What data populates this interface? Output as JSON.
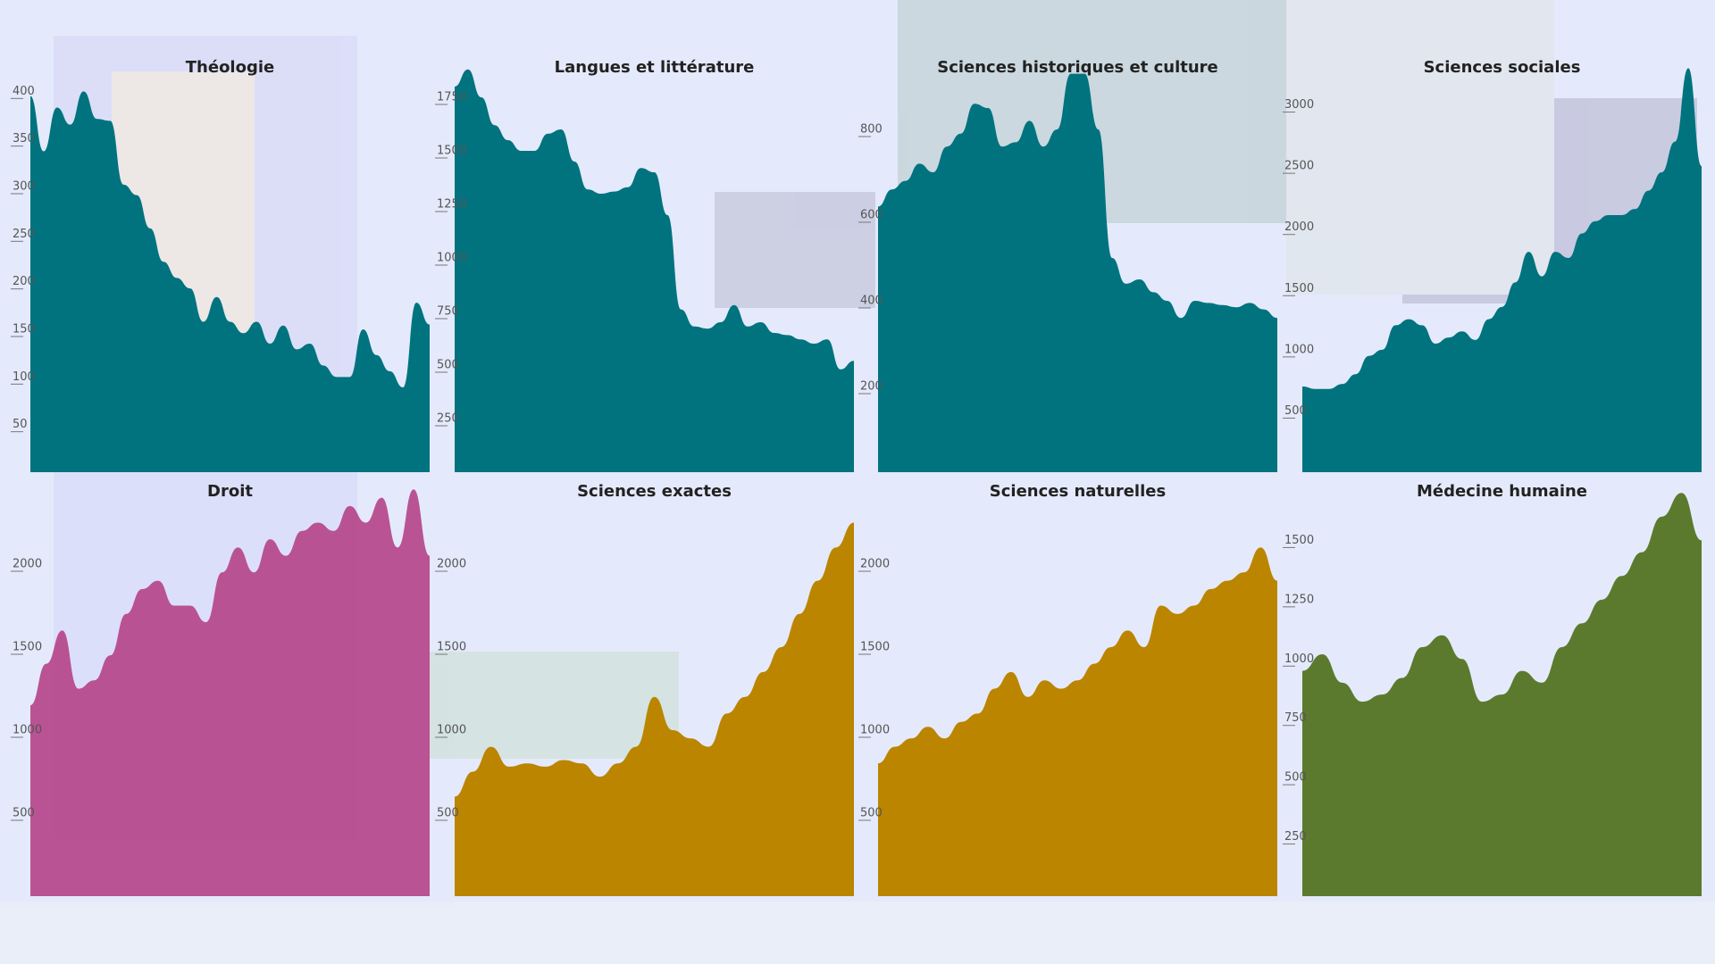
{
  "chart_data": [
    {
      "type": "area",
      "title": "Théologie",
      "color": "#00737f",
      "ylim": [
        0,
        450
      ],
      "yticks": [
        50,
        100,
        150,
        200,
        250,
        300,
        350,
        400
      ],
      "values": [
        395,
        337,
        383,
        365,
        400,
        371,
        369,
        302,
        291,
        256,
        221,
        204,
        193,
        158,
        184,
        158,
        146,
        158,
        135,
        154,
        129,
        135,
        112,
        100,
        100,
        150,
        123,
        106,
        89,
        178,
        155
      ]
    },
    {
      "type": "area",
      "title": "Langues et littérature",
      "color": "#00737f",
      "ylim": [
        0,
        2000
      ],
      "yticks": [
        250,
        500,
        750,
        1000,
        1250,
        1500,
        1750
      ],
      "values": [
        1800,
        1880,
        1750,
        1620,
        1550,
        1500,
        1500,
        1580,
        1600,
        1450,
        1320,
        1300,
        1310,
        1330,
        1420,
        1400,
        1200,
        760,
        680,
        670,
        700,
        780,
        680,
        700,
        650,
        640,
        620,
        600,
        620,
        480,
        520
      ]
    },
    {
      "type": "area",
      "title": "Sciences historiques et culture",
      "color": "#00737f",
      "ylim": [
        0,
        1000
      ],
      "yticks": [
        200,
        400,
        600,
        800
      ],
      "values": [
        620,
        660,
        680,
        720,
        700,
        760,
        790,
        860,
        850,
        760,
        770,
        820,
        760,
        800,
        930,
        930,
        800,
        500,
        440,
        450,
        420,
        400,
        360,
        400,
        395,
        390,
        385,
        395,
        380,
        360
      ]
    },
    {
      "type": "area",
      "title": "Sciences sociales",
      "color": "#00737f",
      "ylim": [
        0,
        3500
      ],
      "yticks": [
        500,
        1000,
        1500,
        2000,
        2500,
        3000
      ],
      "values": [
        700,
        680,
        680,
        720,
        800,
        950,
        1000,
        1200,
        1250,
        1200,
        1050,
        1100,
        1150,
        1080,
        1250,
        1350,
        1550,
        1800,
        1600,
        1800,
        1750,
        1950,
        2050,
        2100,
        2100,
        2150,
        2300,
        2450,
        2700,
        3300,
        2500
      ]
    },
    {
      "type": "area",
      "title": "Droit",
      "color": "#b5458a",
      "ylim": [
        0,
        2500
      ],
      "yticks": [
        500,
        1000,
        1500,
        2000
      ],
      "values": [
        1150,
        1400,
        1600,
        1250,
        1300,
        1450,
        1700,
        1850,
        1900,
        1750,
        1750,
        1650,
        1950,
        2100,
        1950,
        2150,
        2050,
        2200,
        2250,
        2200,
        2350,
        2250,
        2400,
        2100,
        2450,
        2050
      ]
    },
    {
      "type": "area",
      "title": "Sciences exactes",
      "color": "#bb8500",
      "ylim": [
        0,
        2500
      ],
      "yticks": [
        500,
        1000,
        1500,
        2000
      ],
      "values": [
        600,
        750,
        900,
        780,
        800,
        780,
        820,
        800,
        720,
        800,
        900,
        1200,
        1000,
        950,
        900,
        1100,
        1200,
        1350,
        1500,
        1700,
        1900,
        2100,
        2250
      ]
    },
    {
      "type": "area",
      "title": "Sciences naturelles",
      "color": "#bb8500",
      "ylim": [
        0,
        2500
      ],
      "yticks": [
        500,
        1000,
        1500,
        2000
      ],
      "values": [
        800,
        900,
        950,
        1020,
        950,
        1050,
        1100,
        1250,
        1350,
        1200,
        1300,
        1250,
        1300,
        1400,
        1500,
        1600,
        1500,
        1750,
        1700,
        1750,
        1850,
        1900,
        1950,
        2100,
        1900
      ]
    },
    {
      "type": "area",
      "title": "Médecine humaine",
      "color": "#5b7a2e",
      "ylim": [
        0,
        1750
      ],
      "yticks": [
        250,
        500,
        750,
        1000,
        1250,
        1500
      ],
      "values": [
        950,
        1020,
        900,
        820,
        850,
        920,
        1050,
        1100,
        1000,
        820,
        850,
        950,
        900,
        1050,
        1150,
        1250,
        1350,
        1450,
        1600,
        1700,
        1500
      ]
    }
  ]
}
